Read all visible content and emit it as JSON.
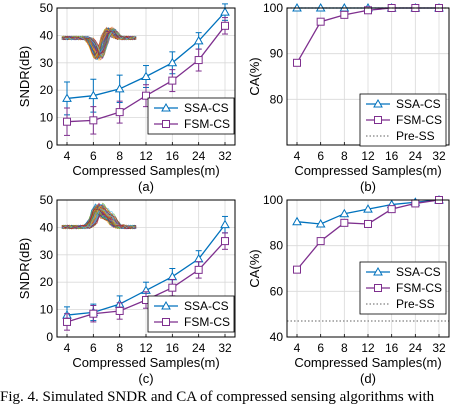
{
  "caption": "Fig. 4. Simulated SNDR and CA of compressed sensing algorithms with",
  "colors": {
    "ssa": "#0072BD",
    "fsm": "#7E2F8E",
    "preSS": "#808080"
  },
  "chart_data": [
    {
      "panel": "a",
      "panel_label": "(a)",
      "type": "line",
      "xlabel": "Compressed Samples(m)",
      "ylabel": "SNDR(dB)",
      "x": [
        4,
        6,
        8,
        12,
        16,
        24,
        32
      ],
      "xticks": [
        "4",
        "6",
        "8",
        "12",
        "16",
        "24",
        "32"
      ],
      "ylim": [
        0,
        50
      ],
      "yticks": [
        "0",
        "10",
        "20",
        "30",
        "40",
        "50"
      ],
      "grid": true,
      "legend": "lower-left",
      "inset": true,
      "series": [
        {
          "name": "SSA-CS",
          "marker": "triangle",
          "values": [
            17,
            18,
            20.5,
            25,
            30,
            38,
            48.5
          ],
          "err": [
            6,
            6,
            5,
            4,
            4,
            3,
            3
          ]
        },
        {
          "name": "FSM-CS",
          "marker": "square",
          "values": [
            8.5,
            9,
            12,
            18,
            23.5,
            31,
            43.5
          ],
          "err": [
            5,
            5,
            4,
            4,
            4,
            4,
            3
          ]
        }
      ]
    },
    {
      "panel": "b",
      "panel_label": "(b)",
      "type": "line",
      "xlabel": "Compressed Samples(m)",
      "ylabel": "CA(%)",
      "x": [
        4,
        6,
        8,
        12,
        16,
        24,
        32
      ],
      "xticks": [
        "4",
        "6",
        "8",
        "12",
        "16",
        "24",
        "32"
      ],
      "ylim": [
        70,
        100
      ],
      "yticks": [
        "80",
        "90",
        "100"
      ],
      "grid": true,
      "legend": "center-right",
      "series": [
        {
          "name": "SSA-CS",
          "marker": "triangle",
          "values": [
            100,
            100,
            100,
            100,
            100,
            100,
            100
          ]
        },
        {
          "name": "FSM-CS",
          "marker": "square",
          "values": [
            88,
            97,
            98.5,
            99.5,
            100,
            100,
            100
          ]
        },
        {
          "name": "Pre-SS",
          "style": "dotted",
          "values": [
            100,
            100,
            100,
            100,
            100,
            100,
            100
          ]
        }
      ]
    },
    {
      "panel": "c",
      "panel_label": "(c)",
      "type": "line",
      "xlabel": "Compressed Samples(m)",
      "ylabel": "SNDR(dB)",
      "x": [
        4,
        6,
        8,
        12,
        16,
        24,
        32
      ],
      "xticks": [
        "4",
        "6",
        "8",
        "12",
        "16",
        "24",
        "32"
      ],
      "ylim": [
        0,
        50
      ],
      "yticks": [
        "0",
        "10",
        "20",
        "30",
        "40",
        "50"
      ],
      "grid": true,
      "legend": "lower-right",
      "inset": true,
      "series": [
        {
          "name": "SSA-CS",
          "marker": "triangle",
          "values": [
            8,
            9,
            12,
            17,
            22,
            28.5,
            41
          ],
          "err": [
            3,
            3,
            3,
            3,
            3,
            3,
            3
          ]
        },
        {
          "name": "FSM-CS",
          "marker": "square",
          "values": [
            5.5,
            8.5,
            9.5,
            13.5,
            18,
            24.5,
            35
          ],
          "err": [
            3,
            3,
            3,
            3,
            3,
            3,
            3
          ]
        }
      ]
    },
    {
      "panel": "d",
      "panel_label": "(d)",
      "type": "line",
      "xlabel": "Compressed Samples(m)",
      "ylabel": "CA(%)",
      "x": [
        4,
        6,
        8,
        12,
        16,
        24,
        32
      ],
      "xticks": [
        "4",
        "6",
        "8",
        "12",
        "16",
        "24",
        "32"
      ],
      "ylim": [
        40,
        100
      ],
      "yticks": [
        "40",
        "60",
        "80",
        "100"
      ],
      "grid": true,
      "legend": "center-right",
      "series": [
        {
          "name": "SSA-CS",
          "marker": "triangle",
          "values": [
            90.5,
            89.5,
            94,
            96,
            98,
            99,
            100
          ]
        },
        {
          "name": "FSM-CS",
          "marker": "square",
          "values": [
            69.5,
            82,
            90,
            89.5,
            96,
            98.5,
            100
          ]
        },
        {
          "name": "Pre-SS",
          "style": "dotted",
          "values": [
            47,
            47,
            47,
            47,
            47,
            47,
            47
          ]
        }
      ]
    }
  ]
}
